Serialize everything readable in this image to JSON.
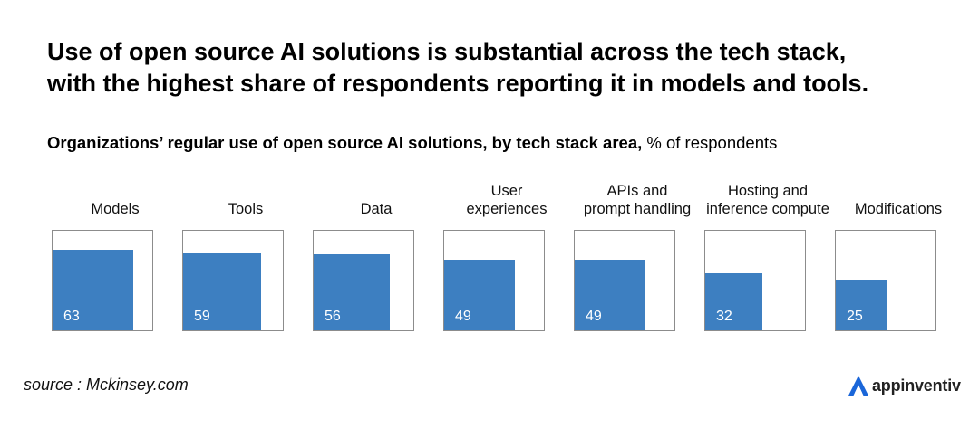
{
  "headline": {
    "line1": "Use of open source AI solutions is substantial across the tech stack,",
    "line2": "with the highest share of respondents reporting it in models and tools."
  },
  "subtitle": {
    "bold": "Organizations’ regular use of open source AI solutions, by tech stack area,",
    "regular": "% of respondents"
  },
  "chart_data": {
    "type": "bar",
    "title": "Organizations’ regular use of open source AI solutions, by tech stack area, % of respondents",
    "ylim": [
      0,
      100
    ],
    "categories": [
      [
        "Models"
      ],
      [
        "Tools"
      ],
      [
        "Data"
      ],
      [
        "User",
        "experiences"
      ],
      [
        "APIs and",
        "prompt handling"
      ],
      [
        "Hosting and",
        "inference compute"
      ],
      [
        "Modifications"
      ]
    ],
    "values": [
      63,
      59,
      56,
      49,
      49,
      32,
      25
    ],
    "bar_color": "#3d7fc1"
  },
  "footer": {
    "source": "source : Mckinsey.com",
    "brand": "appinventiv",
    "brand_color": "#1a66d9"
  }
}
